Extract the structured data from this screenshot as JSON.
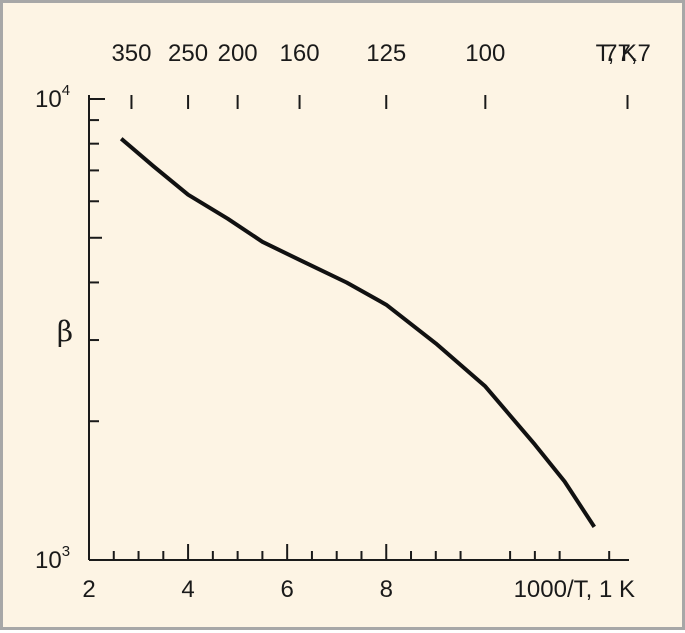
{
  "chart_data": {
    "type": "line",
    "xlabel": "1000/T, 1 K",
    "ylabel": "β",
    "top_axis_label": "T, K",
    "xlim": [
      2,
      12.9
    ],
    "ylim": [
      1000,
      10000
    ],
    "y_scale": "log",
    "x_ticks": [
      "2",
      "4",
      "6",
      "8"
    ],
    "y_ticks": [
      {
        "value": 1000,
        "base": "10",
        "exp": "3"
      },
      {
        "value": 10000,
        "base": "10",
        "exp": "4"
      }
    ],
    "top_ticks": [
      {
        "label": "350",
        "T": 350
      },
      {
        "label": "250",
        "T": 250
      },
      {
        "label": "200",
        "T": 200
      },
      {
        "label": "160",
        "T": 160
      },
      {
        "label": "125",
        "T": 125
      },
      {
        "label": "100",
        "T": 100
      },
      {
        "label": "77,7",
        "T": 77.7
      }
    ],
    "series": [
      {
        "x": [
          2.65,
          3.3,
          4.0,
          4.8,
          5.5,
          6.3,
          7.2,
          8.0,
          9.0,
          10.0,
          11.0,
          11.6,
          12.2
        ],
        "y": [
          8200,
          7150,
          6200,
          5500,
          4900,
          4450,
          4000,
          3580,
          2950,
          2380,
          1780,
          1480,
          1180
        ]
      }
    ],
    "grid": false,
    "legend": "none",
    "line_color": "#111111"
  }
}
